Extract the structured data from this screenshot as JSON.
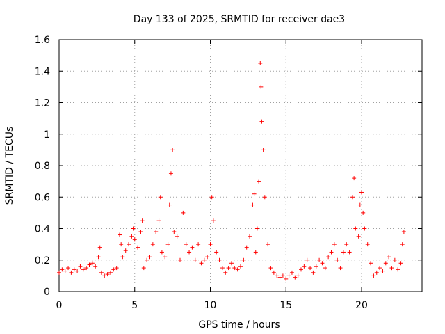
{
  "chart_data": {
    "type": "scatter",
    "title": "Day 133 of 2025, SRMTID for receiver dae3",
    "xlabel": "GPS time / hours",
    "ylabel": "SRMTID / TECUs",
    "xlim": [
      0,
      24
    ],
    "ylim": [
      0,
      1.6
    ],
    "xticks": [
      0,
      5,
      10,
      15,
      20
    ],
    "xtick_labels": [
      "0",
      "5",
      "10",
      "15",
      "20"
    ],
    "yticks": [
      0,
      0.2,
      0.4,
      0.6,
      0.8,
      1.0,
      1.2,
      1.4,
      1.6
    ],
    "ytick_labels": [
      "0",
      "0.2",
      "0.4",
      "0.6",
      "0.8",
      "1",
      "1.2",
      "1.4",
      "1.6"
    ],
    "grid": true,
    "marker": "+",
    "color": "#ff0000",
    "series": [
      {
        "name": "SRMTID",
        "x": [
          0.0,
          0.2,
          0.4,
          0.6,
          0.8,
          1.0,
          1.2,
          1.4,
          1.6,
          1.8,
          2.0,
          2.2,
          2.4,
          2.6,
          2.7,
          2.8,
          3.0,
          3.2,
          3.4,
          3.6,
          3.8,
          4.0,
          4.1,
          4.2,
          4.4,
          4.6,
          4.8,
          4.9,
          5.0,
          5.2,
          5.4,
          5.5,
          5.6,
          5.8,
          6.0,
          6.2,
          6.4,
          6.6,
          6.7,
          6.8,
          7.0,
          7.2,
          7.3,
          7.4,
          7.5,
          7.6,
          7.8,
          8.0,
          8.2,
          8.4,
          8.6,
          8.8,
          9.0,
          9.2,
          9.4,
          9.6,
          9.8,
          10.0,
          10.1,
          10.2,
          10.4,
          10.6,
          10.8,
          11.0,
          11.2,
          11.4,
          11.6,
          11.8,
          12.0,
          12.2,
          12.4,
          12.6,
          12.8,
          12.9,
          13.0,
          13.1,
          13.2,
          13.3,
          13.35,
          13.4,
          13.5,
          13.6,
          13.8,
          14.0,
          14.2,
          14.4,
          14.6,
          14.8,
          15.0,
          15.2,
          15.4,
          15.6,
          15.8,
          16.0,
          16.2,
          16.4,
          16.6,
          16.8,
          17.0,
          17.2,
          17.4,
          17.6,
          17.8,
          18.0,
          18.2,
          18.4,
          18.6,
          18.8,
          19.0,
          19.2,
          19.4,
          19.5,
          19.6,
          19.8,
          19.9,
          20.0,
          20.1,
          20.2,
          20.4,
          20.6,
          20.8,
          21.0,
          21.2,
          21.4,
          21.6,
          21.8,
          22.0,
          22.2,
          22.4,
          22.6,
          22.7,
          22.8
        ],
        "y": [
          0.12,
          0.14,
          0.13,
          0.15,
          0.12,
          0.14,
          0.13,
          0.16,
          0.14,
          0.15,
          0.17,
          0.18,
          0.16,
          0.22,
          0.28,
          0.12,
          0.1,
          0.11,
          0.12,
          0.14,
          0.15,
          0.36,
          0.3,
          0.22,
          0.26,
          0.3,
          0.35,
          0.4,
          0.33,
          0.28,
          0.38,
          0.45,
          0.15,
          0.2,
          0.22,
          0.3,
          0.38,
          0.45,
          0.6,
          0.25,
          0.22,
          0.3,
          0.55,
          0.75,
          0.9,
          0.38,
          0.35,
          0.2,
          0.5,
          0.3,
          0.25,
          0.28,
          0.2,
          0.3,
          0.18,
          0.2,
          0.22,
          0.3,
          0.6,
          0.45,
          0.25,
          0.2,
          0.15,
          0.12,
          0.15,
          0.18,
          0.15,
          0.14,
          0.16,
          0.2,
          0.28,
          0.35,
          0.55,
          0.62,
          0.25,
          0.4,
          0.7,
          1.45,
          1.3,
          1.08,
          0.9,
          0.6,
          0.3,
          0.15,
          0.12,
          0.1,
          0.09,
          0.1,
          0.08,
          0.1,
          0.12,
          0.09,
          0.1,
          0.14,
          0.16,
          0.2,
          0.15,
          0.12,
          0.16,
          0.2,
          0.18,
          0.15,
          0.22,
          0.25,
          0.3,
          0.2,
          0.15,
          0.25,
          0.3,
          0.25,
          0.6,
          0.72,
          0.4,
          0.35,
          0.55,
          0.63,
          0.5,
          0.4,
          0.3,
          0.18,
          0.1,
          0.12,
          0.15,
          0.13,
          0.18,
          0.22,
          0.15,
          0.2,
          0.14,
          0.18,
          0.3,
          0.38
        ]
      }
    ]
  }
}
